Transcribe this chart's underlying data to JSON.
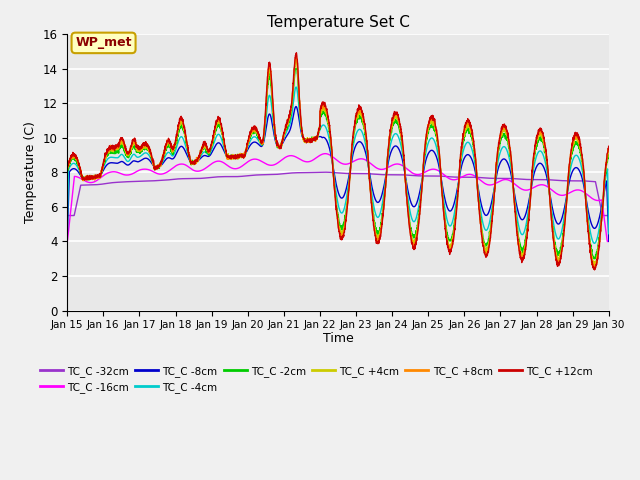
{
  "title": "Temperature Set C",
  "xlabel": "Time",
  "ylabel": "Temperature (C)",
  "ylim": [
    0,
    16
  ],
  "xlim": [
    0,
    15
  ],
  "x_tick_labels": [
    "Jan 15",
    "Jan 16",
    "Jan 17",
    "Jan 18",
    "Jan 19",
    "Jan 20",
    "Jan 21",
    "Jan 22",
    "Jan 23",
    "Jan 24",
    "Jan 25",
    "Jan 26",
    "Jan 27",
    "Jan 28",
    "Jan 29",
    "Jan 30"
  ],
  "series_colors": {
    "TC_C -32cm": "#9933CC",
    "TC_C -16cm": "#FF00FF",
    "TC_C -8cm": "#0000CC",
    "TC_C -4cm": "#00CCCC",
    "TC_C -2cm": "#00CC00",
    "TC_C +4cm": "#CCCC00",
    "TC_C +8cm": "#FF8800",
    "TC_C +12cm": "#CC0000"
  },
  "legend_label": "WP_met",
  "background_color": "#E8E8E8",
  "plot_bg": "#E8E8E8"
}
